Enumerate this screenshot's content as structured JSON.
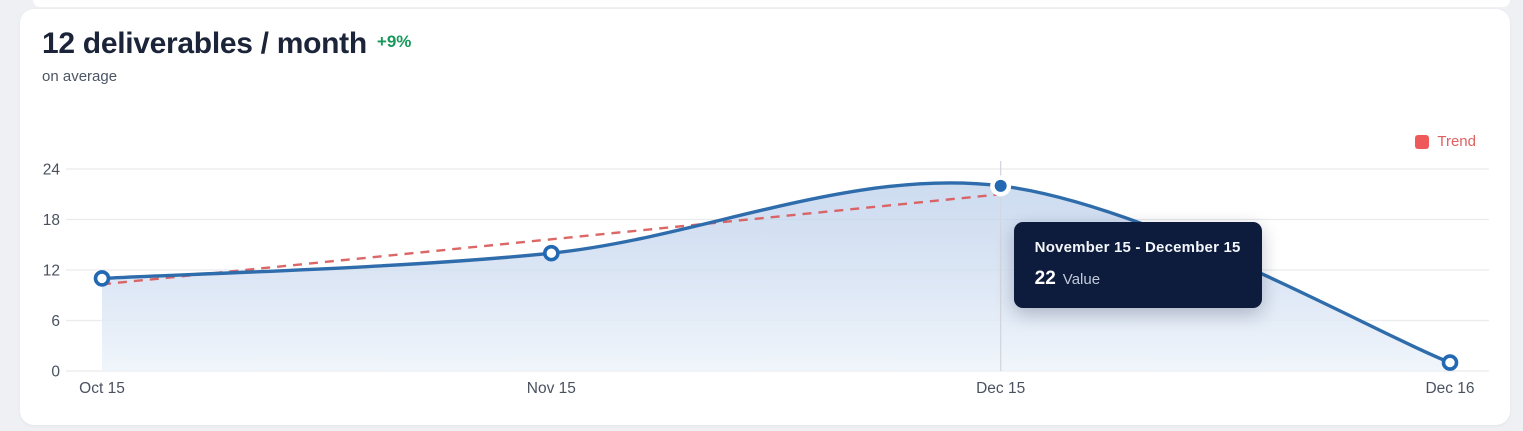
{
  "header": {
    "title": "12 deliverables / month",
    "delta": "+9%",
    "subtitle": "on average"
  },
  "chart_data": {
    "type": "line",
    "categories": [
      "Oct 15",
      "Nov 15",
      "Dec 15",
      "Dec 16"
    ],
    "series": [
      {
        "name": "Deliverables",
        "values": [
          11,
          14,
          22,
          1
        ]
      }
    ],
    "trend": {
      "name": "Trend",
      "x_span": [
        0,
        2
      ],
      "values": [
        10.3,
        21
      ]
    },
    "yticks": [
      0,
      6,
      12,
      18,
      24
    ],
    "ylim": [
      0,
      24
    ],
    "grid": true,
    "active_point_index": 2,
    "legend": {
      "label": "Trend",
      "position": "top-right"
    },
    "tooltip": {
      "title": "November 15 - December 15",
      "value": "22",
      "label": "Value"
    },
    "colors": {
      "line": "#2e6cab",
      "point_stroke": "#2268b2",
      "area_top": "#b9cdea",
      "area_bottom": "#f0f5fb",
      "trend": "#d95757",
      "grid": "#e9ebee",
      "crosshair": "#d3d7dd",
      "axis_label": "#4a5260",
      "tooltip_bg": "#0d1b3c",
      "delta_green": "#17995c",
      "legend_swatch": "#ee5a5a",
      "legend_text": "#e06060"
    }
  }
}
